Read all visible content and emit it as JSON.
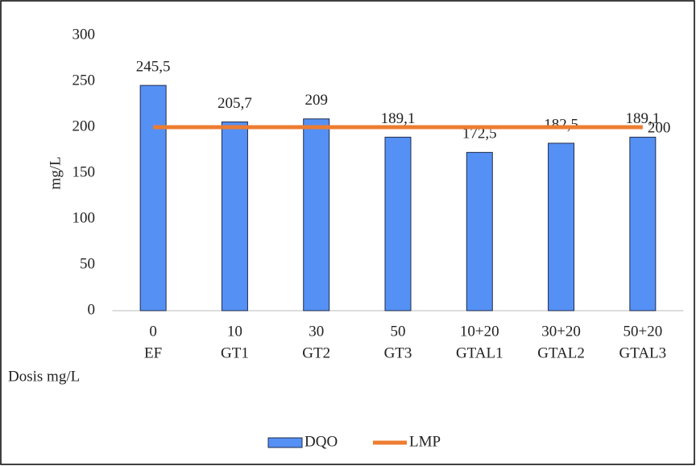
{
  "chart_data": {
    "type": "bar",
    "x_label": "Dosis mg/L",
    "y_label": "mg/L",
    "categories": [
      [
        "0",
        "EF"
      ],
      [
        "10",
        "GT1"
      ],
      [
        "30",
        "GT2"
      ],
      [
        "50",
        "GT3"
      ],
      [
        "10+20",
        "GTAL1"
      ],
      [
        "30+20",
        "GTAL2"
      ],
      [
        "50+20",
        "GTAL3"
      ]
    ],
    "series": [
      {
        "name": "DQO",
        "type": "bar",
        "color": "#5590f5",
        "values": [
          245.5,
          205.7,
          209,
          189.1,
          172.5,
          182.5,
          189.1
        ],
        "value_labels": [
          "245,5",
          "205,7",
          "209",
          "189,1",
          "172,5",
          "182,5",
          "189,1"
        ]
      },
      {
        "name": "LMP",
        "type": "line",
        "color": "#ed7d31",
        "values": [
          200,
          200,
          200,
          200,
          200,
          200,
          200
        ],
        "value_labels": [
          null,
          null,
          null,
          null,
          null,
          null,
          "200"
        ]
      }
    ],
    "ylim": [
      0,
      300
    ],
    "yticks": [
      0,
      50,
      100,
      150,
      200,
      250,
      300
    ],
    "grid": false,
    "legend": "bottom"
  }
}
